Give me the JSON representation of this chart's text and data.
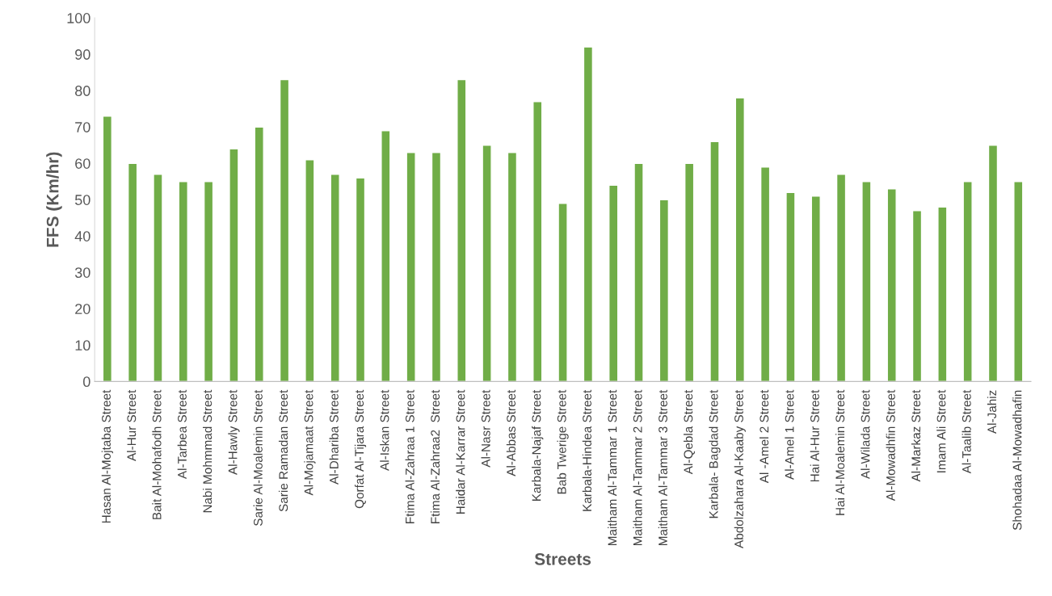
{
  "chart_data": {
    "type": "bar",
    "xlabel": "Streets",
    "ylabel": "FFS (Km/hr)",
    "categories": [
      "Hasan Al-Mojtaba Street",
      "Al-Hur Street",
      "Bait Al-Mohafodh Street",
      "Al-Tarbea Street",
      "Nabi Mohmmad Street",
      "Al-Hawly Street",
      "Sarie Al-Moalemin Street",
      "Sarie Ramadan Street",
      "Al-Mojamaat Street",
      "Al-Dhariba Street",
      "Qorfat Al-Tijara Street",
      "Al-Iskan Street",
      "Ftima Al-Zahraa 1 Street",
      "Ftima Al-Zahraa2  Street",
      "Haidar Al-Karrar Street",
      "Al-Nasr Street",
      "Al-Abbas Street",
      "Karbala-Najaf Street",
      "Bab Twerige Street",
      "Karbala-Hindea Street",
      "Maitham Al-Tammar 1 Street",
      "Maitham Al-Tammar 2 Street",
      "Maitham Al-Tammar 3 Street",
      "Al-Qebla Street",
      "Karbala- Bagdad Street",
      "Abdolzahara Al-Kaaby Street",
      "Al -Amel 2 Street",
      "Al-Amel 1 Street",
      "Hai Al-Hur Street",
      "Hai Al-Moalemin Street",
      "Al-Wilada Street",
      "Al-Mowadhfin Street",
      "Al-Markaz Street",
      "Imam Ali Street",
      "Al-Taalib Street",
      "Al-Jahiz",
      "Shohadaa Al-Mowadhafin"
    ],
    "values": [
      73,
      60,
      57,
      55,
      55,
      64,
      70,
      83,
      61,
      57,
      56,
      69,
      63,
      63,
      83,
      65,
      63,
      77,
      49,
      92,
      54,
      60,
      50,
      60,
      66,
      78,
      59,
      52,
      51,
      57,
      55,
      53,
      47,
      48,
      55,
      65,
      55
    ],
    "color": "#70ad47",
    "ylim": [
      0,
      100
    ],
    "yticks": [
      0,
      10,
      20,
      30,
      40,
      50,
      60,
      70,
      80,
      90,
      100
    ]
  }
}
